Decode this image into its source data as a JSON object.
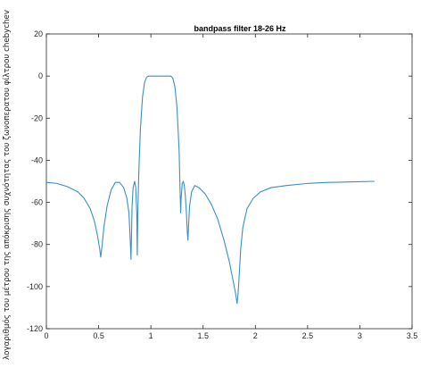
{
  "chart_data": {
    "type": "line",
    "title": "bandpass filter 18-26 Hz",
    "xlabel": "",
    "ylabel": "λογαριθμός του μέτρου της απόκρισης συχνότητας του ζωνοπερατου φίλτρου chebychev",
    "xlim": [
      0,
      3.5
    ],
    "ylim": [
      -120,
      20
    ],
    "xticks": [
      0,
      0.5,
      1,
      1.5,
      2,
      2.5,
      3,
      3.5
    ],
    "yticks": [
      -120,
      -100,
      -80,
      -60,
      -40,
      -20,
      0,
      20
    ],
    "xtick_labels": [
      "0",
      "0.5",
      "1",
      "1.5",
      "2",
      "2.5",
      "3",
      "3.5"
    ],
    "ytick_labels": [
      "-120",
      "-100",
      "-80",
      "-60",
      "-40",
      "-20",
      "0",
      "20"
    ],
    "grid": false,
    "series": [
      {
        "color": "#3a8fc4",
        "x": [
          0,
          0.1,
          0.2,
          0.3,
          0.36,
          0.42,
          0.46,
          0.49,
          0.51,
          0.52,
          0.53,
          0.55,
          0.58,
          0.62,
          0.66,
          0.7,
          0.74,
          0.77,
          0.79,
          0.8,
          0.81,
          0.815,
          0.82,
          0.83,
          0.845,
          0.855,
          0.865,
          0.87,
          0.875,
          0.885,
          0.9,
          0.92,
          0.94,
          0.96,
          0.98,
          1.0,
          1.02,
          1.04,
          1.06,
          1.09,
          1.12,
          1.15,
          1.17,
          1.19,
          1.21,
          1.23,
          1.25,
          1.27,
          1.28,
          1.285,
          1.29,
          1.3,
          1.31,
          1.32,
          1.33,
          1.34,
          1.35,
          1.355,
          1.36,
          1.37,
          1.39,
          1.42,
          1.46,
          1.52,
          1.58,
          1.64,
          1.7,
          1.75,
          1.79,
          1.81,
          1.825,
          1.835,
          1.845,
          1.86,
          1.88,
          1.92,
          1.98,
          2.05,
          2.15,
          2.3,
          2.5,
          2.7,
          2.9,
          3.14
        ],
        "y": [
          -50.5,
          -51,
          -52.5,
          -55,
          -58,
          -63,
          -69,
          -76,
          -82,
          -86,
          -82,
          -72,
          -62,
          -54,
          -50.5,
          -50.5,
          -53,
          -58,
          -65,
          -75,
          -87,
          -75,
          -62,
          -53,
          -50,
          -53,
          -65,
          -85,
          -65,
          -45,
          -25,
          -10,
          -3,
          -0.5,
          0,
          0,
          0,
          0,
          0,
          0,
          0,
          0,
          0,
          0,
          -1,
          -5,
          -15,
          -35,
          -55,
          -65,
          -58,
          -51,
          -50,
          -52,
          -57,
          -65,
          -75,
          -78,
          -72,
          -62,
          -55,
          -52,
          -53,
          -56,
          -61,
          -68,
          -78,
          -88,
          -98,
          -103,
          -108,
          -103,
          -95,
          -82,
          -72,
          -63,
          -58,
          -55,
          -53,
          -52,
          -51,
          -50.5,
          -50.3,
          -50
        ]
      }
    ]
  }
}
